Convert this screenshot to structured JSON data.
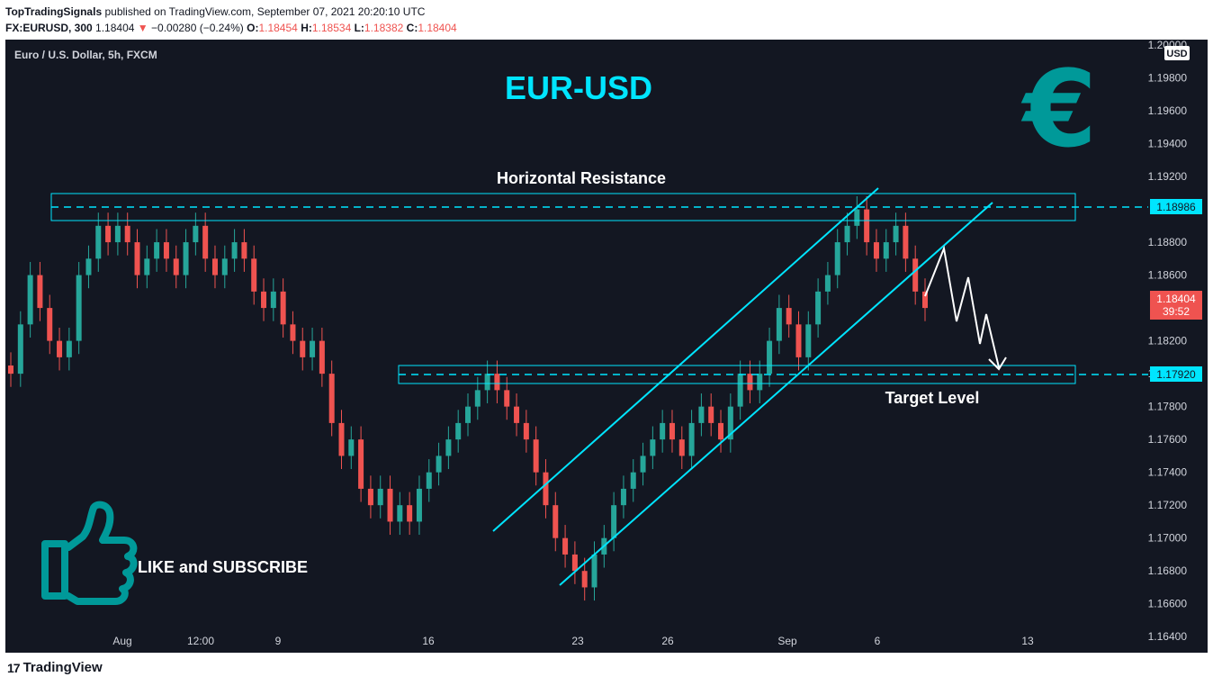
{
  "header": {
    "author": "TopTradingSignals",
    "published": "published on TradingView.com, September 07, 2021 20:20:10 UTC",
    "symbol": "FX:EURUSD, 300",
    "last": "1.18404",
    "change_arrow": "▼",
    "change": "−0.00280 (−0.24%)",
    "o_label": "O:",
    "o": "1.18454",
    "h_label": "H:",
    "h": "1.18534",
    "l_label": "L:",
    "l": "1.18382",
    "c_label": "C:",
    "c": "1.18404"
  },
  "legend": "Euro / U.S. Dollar, 5h, FXCM",
  "title": "EUR-USD",
  "currency_badge": "USD",
  "annotations": {
    "resistance": "Horizontal Resistance",
    "target": "Target Level",
    "cta": "LIKE and SUBSCRIBE"
  },
  "price_labels": {
    "resistance": "1.18986",
    "target": "1.17920",
    "current": "1.18404",
    "countdown": "39:52"
  },
  "footer": {
    "brand": "TradingView",
    "logo": "17"
  },
  "colors": {
    "background": "#131722",
    "up": "#26a69a",
    "down": "#ef5350",
    "accent": "#00e5ff",
    "euro": "#009999"
  },
  "icons": [
    "euro-icon",
    "thumbs-up-icon",
    "tradingview-logo-icon"
  ],
  "chart_data": {
    "type": "candlestick",
    "y_ticks": [
      "1.20000",
      "1.19800",
      "1.19600",
      "1.19400",
      "1.19200",
      "1.18800",
      "1.18600",
      "1.18200",
      "1.18000",
      "1.17800",
      "1.17600",
      "1.17400",
      "1.17200",
      "1.17000",
      "1.16800",
      "1.16600",
      "1.16400"
    ],
    "x_ticks": [
      "Aug",
      "12:00",
      "9",
      "16",
      "23",
      "26",
      "Sep",
      "6",
      "13"
    ],
    "ylim": [
      1.1633,
      1.2
    ],
    "levels": {
      "resistance": 1.18986,
      "target": 1.1792
    },
    "closes": [
      1.18,
      1.183,
      1.186,
      1.184,
      1.182,
      1.181,
      1.182,
      1.186,
      1.187,
      1.189,
      1.188,
      1.189,
      1.188,
      1.186,
      1.187,
      1.188,
      1.187,
      1.186,
      1.188,
      1.189,
      1.187,
      1.186,
      1.187,
      1.188,
      1.187,
      1.185,
      1.184,
      1.185,
      1.183,
      1.182,
      1.181,
      1.182,
      1.18,
      1.177,
      1.175,
      1.176,
      1.173,
      1.172,
      1.173,
      1.171,
      1.172,
      1.171,
      1.173,
      1.174,
      1.175,
      1.176,
      1.177,
      1.178,
      1.179,
      1.18,
      1.179,
      1.178,
      1.177,
      1.176,
      1.174,
      1.172,
      1.17,
      1.169,
      1.168,
      1.167,
      1.169,
      1.17,
      1.172,
      1.173,
      1.174,
      1.175,
      1.176,
      1.177,
      1.176,
      1.175,
      1.177,
      1.178,
      1.177,
      1.176,
      1.178,
      1.18,
      1.179,
      1.18,
      1.182,
      1.184,
      1.183,
      1.181,
      1.183,
      1.185,
      1.186,
      1.188,
      1.189,
      1.19,
      1.188,
      1.187,
      1.188,
      1.189,
      1.187,
      1.185,
      1.184
    ]
  }
}
